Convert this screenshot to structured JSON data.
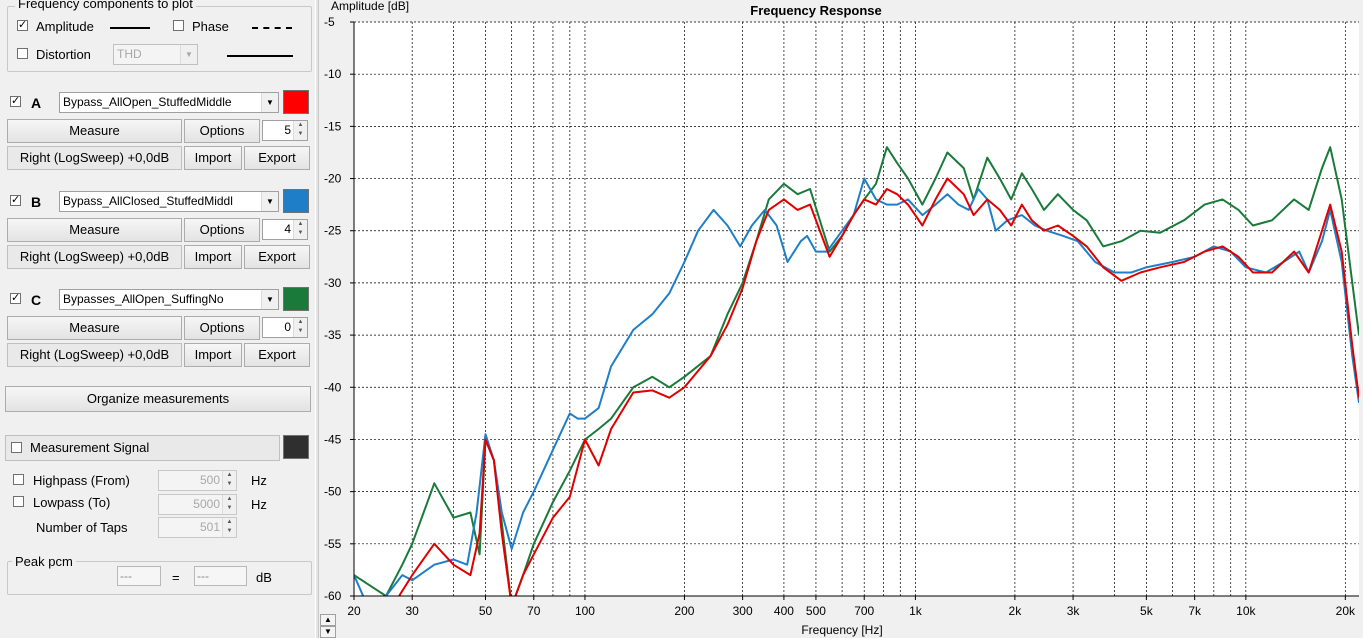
{
  "freq_group": {
    "title": "Frequency components to plot",
    "amplitude_label": "Amplitude",
    "amplitude_checked": true,
    "phase_label": "Phase",
    "phase_checked": false,
    "distortion_label": "Distortion",
    "distortion_checked": false,
    "distortion_select": "THD"
  },
  "measurements": [
    {
      "letter": "A",
      "checked": true,
      "name": "Bypass_AllOpen_StuffedMiddle",
      "color": "#ff0000",
      "measure": "Measure",
      "options": "Options",
      "spin": "5",
      "info": "Right (LogSweep) +0,0dB",
      "import": "Import",
      "export": "Export"
    },
    {
      "letter": "B",
      "checked": true,
      "name": "Bypass_AllClosed_StuffedMiddl",
      "color": "#1e7fc8",
      "measure": "Measure",
      "options": "Options",
      "spin": "4",
      "info": "Right (LogSweep) +0,0dB",
      "import": "Import",
      "export": "Export"
    },
    {
      "letter": "C",
      "checked": true,
      "name": "Bypasses_AllOpen_SuffingNo",
      "color": "#1a7a3a",
      "measure": "Measure",
      "options": "Options",
      "spin": "0",
      "info": "Right (LogSweep) +0,0dB",
      "import": "Import",
      "export": "Export"
    }
  ],
  "organize_label": "Organize measurements",
  "signal": {
    "label": "Measurement Signal",
    "checked": false,
    "color": "#2f2f2f",
    "highpass_label": "Highpass (From)",
    "highpass_value": "500",
    "lowpass_label": "Lowpass (To)",
    "lowpass_value": "5000",
    "taps_label": "Number of Taps",
    "taps_value": "501",
    "hz": "Hz"
  },
  "peak": {
    "title": "Peak pcm",
    "value1": "---",
    "equals": "=",
    "value2": "---",
    "unit": "dB"
  },
  "chart_data": {
    "type": "line",
    "title": "Frequency Response",
    "xlabel": "Frequency [Hz]",
    "ylabel": "Amplitude [dB]",
    "xscale": "log",
    "xlim": [
      20,
      22000
    ],
    "ylim": [
      -60,
      -5
    ],
    "grid": true,
    "xticks": [
      20,
      30,
      50,
      70,
      100,
      200,
      300,
      400,
      500,
      700,
      1000,
      2000,
      3000,
      5000,
      7000,
      10000,
      20000
    ],
    "xtick_labels": [
      "20",
      "30",
      "50",
      "70",
      "100",
      "200",
      "300",
      "400",
      "500",
      "700",
      "1k",
      "2k",
      "3k",
      "5k",
      "7k",
      "10k",
      "20k"
    ],
    "yticks": [
      -5,
      -10,
      -15,
      -20,
      -25,
      -30,
      -35,
      -40,
      -45,
      -50,
      -55,
      -60
    ],
    "series": [
      {
        "color": "#1a7a3a",
        "points": [
          [
            20,
            -58
          ],
          [
            25,
            -60
          ],
          [
            28,
            -57
          ],
          [
            30,
            -55
          ],
          [
            35,
            -49.2
          ],
          [
            40,
            -52.5
          ],
          [
            45,
            -52
          ],
          [
            48,
            -56
          ],
          [
            50,
            -45
          ],
          [
            53,
            -47
          ],
          [
            56,
            -53
          ],
          [
            60,
            -61
          ],
          [
            65,
            -58
          ],
          [
            70,
            -55
          ],
          [
            80,
            -51
          ],
          [
            90,
            -48
          ],
          [
            100,
            -45
          ],
          [
            110,
            -44
          ],
          [
            120,
            -43
          ],
          [
            140,
            -40
          ],
          [
            160,
            -39
          ],
          [
            180,
            -40
          ],
          [
            200,
            -39
          ],
          [
            240,
            -37
          ],
          [
            270,
            -33
          ],
          [
            300,
            -30
          ],
          [
            330,
            -26
          ],
          [
            360,
            -22
          ],
          [
            400,
            -20.5
          ],
          [
            440,
            -21.5
          ],
          [
            480,
            -21
          ],
          [
            550,
            -27
          ],
          [
            600,
            -25.5
          ],
          [
            650,
            -23.5
          ],
          [
            700,
            -22
          ],
          [
            760,
            -20.5
          ],
          [
            820,
            -17
          ],
          [
            880,
            -18.5
          ],
          [
            950,
            -20
          ],
          [
            1050,
            -22.5
          ],
          [
            1150,
            -20
          ],
          [
            1250,
            -17.5
          ],
          [
            1400,
            -19
          ],
          [
            1500,
            -22
          ],
          [
            1650,
            -18
          ],
          [
            1800,
            -20
          ],
          [
            1950,
            -22
          ],
          [
            2100,
            -19.5
          ],
          [
            2250,
            -21
          ],
          [
            2450,
            -23
          ],
          [
            2700,
            -21.5
          ],
          [
            3000,
            -23
          ],
          [
            3300,
            -24
          ],
          [
            3700,
            -26.5
          ],
          [
            4200,
            -26
          ],
          [
            4800,
            -25
          ],
          [
            5500,
            -25.2
          ],
          [
            6500,
            -24
          ],
          [
            7500,
            -22.5
          ],
          [
            8500,
            -22
          ],
          [
            9500,
            -23
          ],
          [
            10500,
            -24.5
          ],
          [
            12000,
            -24
          ],
          [
            14000,
            -22
          ],
          [
            15500,
            -23
          ],
          [
            17000,
            -19
          ],
          [
            18000,
            -17
          ],
          [
            19500,
            -22
          ],
          [
            21000,
            -30
          ],
          [
            22000,
            -35
          ]
        ]
      },
      {
        "color": "#1e7fc8",
        "points": [
          [
            20,
            -58
          ],
          [
            22,
            -61
          ],
          [
            25,
            -60
          ],
          [
            28,
            -58
          ],
          [
            30,
            -58.5
          ],
          [
            35,
            -57
          ],
          [
            40,
            -56.5
          ],
          [
            44,
            -57
          ],
          [
            47,
            -52
          ],
          [
            50,
            -44.5
          ],
          [
            53,
            -47
          ],
          [
            56,
            -52
          ],
          [
            60,
            -55.5
          ],
          [
            65,
            -52
          ],
          [
            70,
            -50
          ],
          [
            80,
            -46
          ],
          [
            90,
            -42.5
          ],
          [
            95,
            -43
          ],
          [
            100,
            -43
          ],
          [
            110,
            -42
          ],
          [
            120,
            -38
          ],
          [
            140,
            -34.5
          ],
          [
            160,
            -33
          ],
          [
            180,
            -31
          ],
          [
            200,
            -28
          ],
          [
            220,
            -25
          ],
          [
            245,
            -23
          ],
          [
            270,
            -24.5
          ],
          [
            295,
            -26.5
          ],
          [
            320,
            -24.5
          ],
          [
            350,
            -23
          ],
          [
            380,
            -24.5
          ],
          [
            410,
            -28
          ],
          [
            450,
            -26
          ],
          [
            470,
            -25.5
          ],
          [
            500,
            -27
          ],
          [
            540,
            -27
          ],
          [
            600,
            -25
          ],
          [
            650,
            -23.5
          ],
          [
            700,
            -20
          ],
          [
            760,
            -22
          ],
          [
            820,
            -22.5
          ],
          [
            880,
            -22.5
          ],
          [
            950,
            -22
          ],
          [
            1050,
            -23.5
          ],
          [
            1150,
            -22.5
          ],
          [
            1250,
            -21.5
          ],
          [
            1350,
            -22.5
          ],
          [
            1450,
            -23
          ],
          [
            1550,
            -21
          ],
          [
            1650,
            -22
          ],
          [
            1750,
            -25
          ],
          [
            1900,
            -24
          ],
          [
            2100,
            -23.5
          ],
          [
            2300,
            -24.5
          ],
          [
            2500,
            -25
          ],
          [
            2800,
            -25.5
          ],
          [
            3100,
            -26
          ],
          [
            3500,
            -28
          ],
          [
            4000,
            -29
          ],
          [
            4500,
            -29
          ],
          [
            5000,
            -28.5
          ],
          [
            6000,
            -28
          ],
          [
            7000,
            -27.5
          ],
          [
            8000,
            -26.5
          ],
          [
            9000,
            -27
          ],
          [
            10000,
            -28.5
          ],
          [
            11500,
            -29
          ],
          [
            13000,
            -28
          ],
          [
            14500,
            -27
          ],
          [
            15500,
            -29
          ],
          [
            17000,
            -26
          ],
          [
            18000,
            -23
          ],
          [
            19500,
            -28
          ],
          [
            21000,
            -37
          ],
          [
            22000,
            -41.5
          ]
        ]
      },
      {
        "color": "#e00000",
        "points": [
          [
            25,
            -62
          ],
          [
            30,
            -58
          ],
          [
            35,
            -55
          ],
          [
            40,
            -57
          ],
          [
            45,
            -58
          ],
          [
            48,
            -54
          ],
          [
            50,
            -45
          ],
          [
            53,
            -47
          ],
          [
            56,
            -54
          ],
          [
            60,
            -61
          ],
          [
            65,
            -58
          ],
          [
            70,
            -56
          ],
          [
            80,
            -52.5
          ],
          [
            90,
            -50.5
          ],
          [
            100,
            -45
          ],
          [
            110,
            -47.5
          ],
          [
            120,
            -44
          ],
          [
            140,
            -40.5
          ],
          [
            160,
            -40.3
          ],
          [
            180,
            -41
          ],
          [
            200,
            -40
          ],
          [
            240,
            -37
          ],
          [
            270,
            -34
          ],
          [
            300,
            -30.5
          ],
          [
            330,
            -26
          ],
          [
            360,
            -23
          ],
          [
            400,
            -22
          ],
          [
            440,
            -23
          ],
          [
            480,
            -22.5
          ],
          [
            550,
            -27.5
          ],
          [
            600,
            -25.5
          ],
          [
            650,
            -23.5
          ],
          [
            700,
            -22
          ],
          [
            760,
            -22.5
          ],
          [
            820,
            -21
          ],
          [
            880,
            -21.5
          ],
          [
            950,
            -22.5
          ],
          [
            1050,
            -24.5
          ],
          [
            1150,
            -22
          ],
          [
            1250,
            -20
          ],
          [
            1400,
            -21.5
          ],
          [
            1500,
            -23.5
          ],
          [
            1650,
            -22
          ],
          [
            1800,
            -23
          ],
          [
            1950,
            -24.5
          ],
          [
            2100,
            -22.5
          ],
          [
            2250,
            -24
          ],
          [
            2450,
            -25
          ],
          [
            2700,
            -24.5
          ],
          [
            3000,
            -25.5
          ],
          [
            3300,
            -26.5
          ],
          [
            3700,
            -28.5
          ],
          [
            4200,
            -29.8
          ],
          [
            4800,
            -29
          ],
          [
            5500,
            -28.5
          ],
          [
            6500,
            -28
          ],
          [
            7500,
            -27
          ],
          [
            8500,
            -26.5
          ],
          [
            9500,
            -27.5
          ],
          [
            10500,
            -29
          ],
          [
            12000,
            -29
          ],
          [
            14000,
            -27
          ],
          [
            15500,
            -29
          ],
          [
            17000,
            -25
          ],
          [
            18000,
            -22.5
          ],
          [
            19500,
            -27
          ],
          [
            21000,
            -36
          ],
          [
            22000,
            -41
          ]
        ]
      }
    ]
  }
}
